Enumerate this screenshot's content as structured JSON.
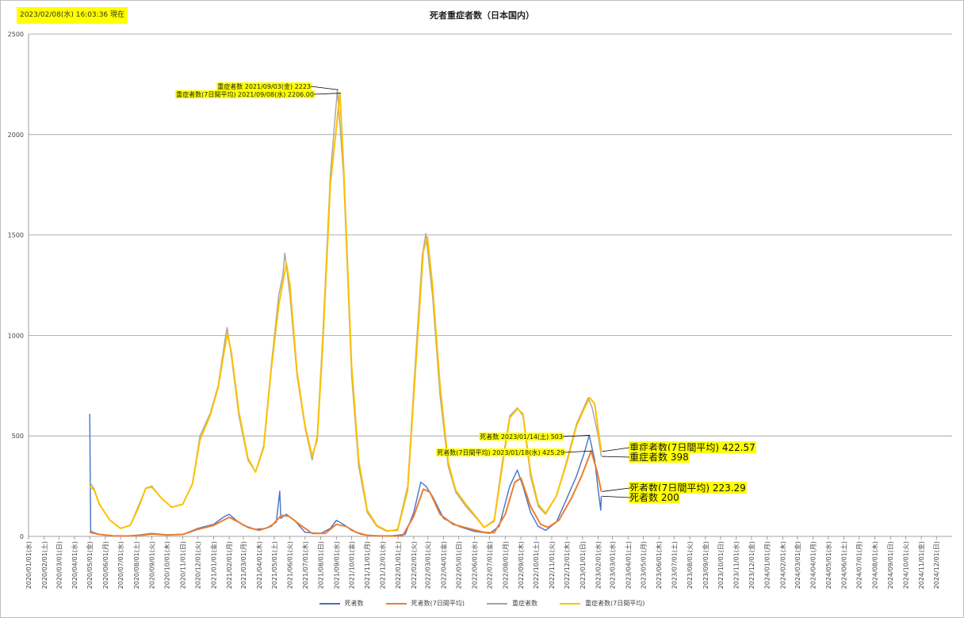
{
  "timestamp": "2023/02/08(水) 16:03:36 現在",
  "chart_data": {
    "type": "line",
    "title": "死者重症者数（日本国内）",
    "ylim": [
      0,
      2500
    ],
    "yticks": [
      0,
      500,
      1000,
      1500,
      2000,
      2500
    ],
    "x_tick_labels": [
      "2020/01/01(水)",
      "2020/02/01(土)",
      "2020/03/01(日)",
      "2020/04/01(水)",
      "2020/05/01(金)",
      "2020/06/01(月)",
      "2020/07/01(水)",
      "2020/08/01(土)",
      "2020/09/01(火)",
      "2020/10/01(木)",
      "2020/11/01(日)",
      "2020/12/01(火)",
      "2021/01/01(金)",
      "2021/02/01(月)",
      "2021/03/01(月)",
      "2021/04/01(木)",
      "2021/05/01(土)",
      "2021/06/01(火)",
      "2021/07/01(木)",
      "2021/08/01(日)",
      "2021/09/01(水)",
      "2021/10/01(金)",
      "2021/11/01(月)",
      "2021/12/01(水)",
      "2022/01/01(土)",
      "2022/02/01(火)",
      "2022/03/01(火)",
      "2022/04/01(金)",
      "2022/05/01(日)",
      "2022/06/01(水)",
      "2022/07/01(金)",
      "2022/08/01(月)",
      "2022/09/01(木)",
      "2022/10/01(土)",
      "2022/11/01(火)",
      "2022/12/01(木)",
      "2023/01/01(日)",
      "2023/02/01(水)",
      "2023/03/01(水)",
      "2023/04/01(土)",
      "2023/05/01(月)",
      "2023/06/01(木)",
      "2023/07/01(土)",
      "2023/08/01(火)",
      "2023/09/01(金)",
      "2023/10/01(日)",
      "2023/11/01(水)",
      "2023/12/01(金)",
      "2024/01/01(月)",
      "2024/02/01(木)",
      "2024/03/01(金)",
      "2024/04/01(月)",
      "2024/05/01(水)",
      "2024/06/01(土)",
      "2024/07/01(月)",
      "2024/08/01(木)",
      "2024/09/01(日)",
      "2024/10/01(火)",
      "2024/11/01(金)",
      "2024/12/01(日)"
    ],
    "x_range": [
      "2020-01-01",
      "2025-01-01"
    ],
    "series": [
      {
        "name": "死者数",
        "color": "#4472c4",
        "points": [
          [
            "2020-05-01",
            610
          ],
          [
            "2020-05-03",
            25
          ],
          [
            "2020-05-20",
            10
          ],
          [
            "2020-06-15",
            3
          ],
          [
            "2020-07-15",
            2
          ],
          [
            "2020-08-10",
            8
          ],
          [
            "2020-09-01",
            15
          ],
          [
            "2020-10-01",
            8
          ],
          [
            "2020-11-01",
            10
          ],
          [
            "2020-12-01",
            40
          ],
          [
            "2021-01-01",
            60
          ],
          [
            "2021-01-20",
            95
          ],
          [
            "2021-02-01",
            110
          ],
          [
            "2021-02-15",
            80
          ],
          [
            "2021-03-01",
            55
          ],
          [
            "2021-03-25",
            35
          ],
          [
            "2021-04-15",
            40
          ],
          [
            "2021-05-05",
            70
          ],
          [
            "2021-05-12",
            225
          ],
          [
            "2021-05-14",
            90
          ],
          [
            "2021-05-25",
            110
          ],
          [
            "2021-06-10",
            80
          ],
          [
            "2021-07-01",
            20
          ],
          [
            "2021-08-01",
            15
          ],
          [
            "2021-08-20",
            40
          ],
          [
            "2021-09-01",
            80
          ],
          [
            "2021-09-15",
            60
          ],
          [
            "2021-10-01",
            30
          ],
          [
            "2021-10-20",
            10
          ],
          [
            "2021-11-15",
            3
          ],
          [
            "2021-12-15",
            2
          ],
          [
            "2022-01-15",
            10
          ],
          [
            "2022-02-01",
            120
          ],
          [
            "2022-02-15",
            270
          ],
          [
            "2022-02-25",
            250
          ],
          [
            "2022-03-10",
            200
          ],
          [
            "2022-04-01",
            90
          ],
          [
            "2022-05-01",
            50
          ],
          [
            "2022-06-01",
            25
          ],
          [
            "2022-07-01",
            15
          ],
          [
            "2022-07-20",
            50
          ],
          [
            "2022-08-10",
            250
          ],
          [
            "2022-08-25",
            330
          ],
          [
            "2022-09-05",
            250
          ],
          [
            "2022-09-20",
            120
          ],
          [
            "2022-10-05",
            50
          ],
          [
            "2022-10-20",
            30
          ],
          [
            "2022-11-10",
            70
          ],
          [
            "2022-12-01",
            190
          ],
          [
            "2022-12-20",
            300
          ],
          [
            "2023-01-05",
            420
          ],
          [
            "2023-01-14",
            503
          ],
          [
            "2023-01-25",
            380
          ],
          [
            "2023-02-01",
            230
          ],
          [
            "2023-02-06",
            130
          ],
          [
            "2023-02-07",
            200
          ]
        ]
      },
      {
        "name": "死者数(7日間平均)",
        "color": "#ed7d31",
        "points": [
          [
            "2020-05-01",
            20
          ],
          [
            "2020-05-20",
            10
          ],
          [
            "2020-06-15",
            3
          ],
          [
            "2020-07-15",
            2
          ],
          [
            "2020-08-15",
            7
          ],
          [
            "2020-09-01",
            12
          ],
          [
            "2020-10-01",
            7
          ],
          [
            "2020-11-01",
            10
          ],
          [
            "2020-12-01",
            35
          ],
          [
            "2021-01-01",
            55
          ],
          [
            "2021-02-01",
            95
          ],
          [
            "2021-02-20",
            70
          ],
          [
            "2021-03-10",
            45
          ],
          [
            "2021-04-01",
            30
          ],
          [
            "2021-04-25",
            50
          ],
          [
            "2021-05-15",
            105
          ],
          [
            "2021-05-30",
            100
          ],
          [
            "2021-06-20",
            60
          ],
          [
            "2021-07-15",
            15
          ],
          [
            "2021-08-10",
            15
          ],
          [
            "2021-09-01",
            60
          ],
          [
            "2021-09-20",
            50
          ],
          [
            "2021-10-10",
            20
          ],
          [
            "2021-11-01",
            5
          ],
          [
            "2021-12-01",
            2
          ],
          [
            "2022-01-10",
            3
          ],
          [
            "2022-02-01",
            100
          ],
          [
            "2022-02-20",
            235
          ],
          [
            "2022-03-05",
            220
          ],
          [
            "2022-03-25",
            110
          ],
          [
            "2022-04-20",
            60
          ],
          [
            "2022-05-20",
            40
          ],
          [
            "2022-06-20",
            20
          ],
          [
            "2022-07-10",
            18
          ],
          [
            "2022-08-01",
            110
          ],
          [
            "2022-08-20",
            270
          ],
          [
            "2022-09-01",
            290
          ],
          [
            "2022-09-20",
            150
          ],
          [
            "2022-10-10",
            60
          ],
          [
            "2022-10-25",
            45
          ],
          [
            "2022-11-15",
            80
          ],
          [
            "2022-12-10",
            190
          ],
          [
            "2022-12-30",
            300
          ],
          [
            "2023-01-18",
            425.29
          ],
          [
            "2023-01-30",
            320
          ],
          [
            "2023-02-07",
            223.29
          ]
        ]
      },
      {
        "name": "重症者数",
        "color": "#a5a5a5",
        "points": [
          [
            "2020-05-01",
            270
          ],
          [
            "2020-05-10",
            235
          ],
          [
            "2020-05-20",
            160
          ],
          [
            "2020-06-10",
            80
          ],
          [
            "2020-07-01",
            40
          ],
          [
            "2020-07-20",
            55
          ],
          [
            "2020-08-05",
            150
          ],
          [
            "2020-08-20",
            240
          ],
          [
            "2020-09-01",
            250
          ],
          [
            "2020-09-20",
            190
          ],
          [
            "2020-10-10",
            145
          ],
          [
            "2020-11-01",
            160
          ],
          [
            "2020-11-20",
            260
          ],
          [
            "2020-12-05",
            500
          ],
          [
            "2020-12-25",
            610
          ],
          [
            "2021-01-10",
            750
          ],
          [
            "2021-01-25",
            1000
          ],
          [
            "2021-01-28",
            1040
          ],
          [
            "2021-02-05",
            900
          ],
          [
            "2021-02-20",
            600
          ],
          [
            "2021-03-10",
            380
          ],
          [
            "2021-03-25",
            320
          ],
          [
            "2021-04-10",
            450
          ],
          [
            "2021-04-25",
            850
          ],
          [
            "2021-05-10",
            1200
          ],
          [
            "2021-05-18",
            1300
          ],
          [
            "2021-05-22",
            1410
          ],
          [
            "2021-06-01",
            1200
          ],
          [
            "2021-06-15",
            800
          ],
          [
            "2021-07-01",
            540
          ],
          [
            "2021-07-15",
            380
          ],
          [
            "2021-07-25",
            500
          ],
          [
            "2021-08-05",
            1000
          ],
          [
            "2021-08-20",
            1800
          ],
          [
            "2021-09-03",
            2223
          ],
          [
            "2021-09-15",
            1800
          ],
          [
            "2021-10-01",
            800
          ],
          [
            "2021-10-15",
            350
          ],
          [
            "2021-11-01",
            120
          ],
          [
            "2021-11-20",
            50
          ],
          [
            "2021-12-10",
            25
          ],
          [
            "2021-12-31",
            35
          ],
          [
            "2022-01-20",
            250
          ],
          [
            "2022-02-05",
            900
          ],
          [
            "2022-02-18",
            1400
          ],
          [
            "2022-02-25",
            1507
          ],
          [
            "2022-03-10",
            1200
          ],
          [
            "2022-03-25",
            700
          ],
          [
            "2022-04-10",
            350
          ],
          [
            "2022-04-25",
            220
          ],
          [
            "2022-05-15",
            150
          ],
          [
            "2022-06-05",
            90
          ],
          [
            "2022-06-20",
            45
          ],
          [
            "2022-07-10",
            80
          ],
          [
            "2022-07-25",
            350
          ],
          [
            "2022-08-10",
            600
          ],
          [
            "2022-08-25",
            640
          ],
          [
            "2022-09-05",
            600
          ],
          [
            "2022-09-20",
            300
          ],
          [
            "2022-10-05",
            150
          ],
          [
            "2022-10-20",
            110
          ],
          [
            "2022-11-10",
            200
          ],
          [
            "2022-12-01",
            380
          ],
          [
            "2022-12-20",
            560
          ],
          [
            "2023-01-05",
            650
          ],
          [
            "2023-01-12",
            690
          ],
          [
            "2023-01-20",
            640
          ],
          [
            "2023-02-01",
            500
          ],
          [
            "2023-02-07",
            398
          ]
        ]
      },
      {
        "name": "重症者数(7日間平均)",
        "color": "#ffc000",
        "points": [
          [
            "2020-05-01",
            250
          ],
          [
            "2020-05-10",
            230
          ],
          [
            "2020-05-20",
            160
          ],
          [
            "2020-06-10",
            80
          ],
          [
            "2020-07-01",
            40
          ],
          [
            "2020-07-20",
            55
          ],
          [
            "2020-08-05",
            140
          ],
          [
            "2020-08-20",
            240
          ],
          [
            "2020-09-01",
            245
          ],
          [
            "2020-09-20",
            190
          ],
          [
            "2020-10-10",
            145
          ],
          [
            "2020-11-01",
            160
          ],
          [
            "2020-11-20",
            260
          ],
          [
            "2020-12-05",
            480
          ],
          [
            "2020-12-25",
            600
          ],
          [
            "2021-01-10",
            740
          ],
          [
            "2021-01-28",
            1010
          ],
          [
            "2021-02-05",
            920
          ],
          [
            "2021-02-20",
            620
          ],
          [
            "2021-03-10",
            390
          ],
          [
            "2021-03-25",
            320
          ],
          [
            "2021-04-10",
            440
          ],
          [
            "2021-04-25",
            830
          ],
          [
            "2021-05-10",
            1150
          ],
          [
            "2021-05-25",
            1360
          ],
          [
            "2021-06-01",
            1250
          ],
          [
            "2021-06-15",
            820
          ],
          [
            "2021-07-01",
            550
          ],
          [
            "2021-07-15",
            400
          ],
          [
            "2021-07-25",
            480
          ],
          [
            "2021-08-05",
            950
          ],
          [
            "2021-08-20",
            1750
          ],
          [
            "2021-09-08",
            2206
          ],
          [
            "2021-09-15",
            1850
          ],
          [
            "2021-10-01",
            850
          ],
          [
            "2021-10-15",
            380
          ],
          [
            "2021-11-01",
            130
          ],
          [
            "2021-11-20",
            55
          ],
          [
            "2021-12-10",
            28
          ],
          [
            "2021-12-31",
            30
          ],
          [
            "2022-01-20",
            230
          ],
          [
            "2022-02-05",
            850
          ],
          [
            "2022-02-20",
            1420
          ],
          [
            "2022-02-28",
            1490
          ],
          [
            "2022-03-10",
            1250
          ],
          [
            "2022-03-25",
            750
          ],
          [
            "2022-04-10",
            370
          ],
          [
            "2022-04-25",
            230
          ],
          [
            "2022-05-15",
            160
          ],
          [
            "2022-06-05",
            95
          ],
          [
            "2022-06-20",
            45
          ],
          [
            "2022-07-10",
            75
          ],
          [
            "2022-07-25",
            330
          ],
          [
            "2022-08-10",
            590
          ],
          [
            "2022-08-25",
            635
          ],
          [
            "2022-09-05",
            610
          ],
          [
            "2022-09-20",
            320
          ],
          [
            "2022-10-05",
            160
          ],
          [
            "2022-10-20",
            115
          ],
          [
            "2022-11-10",
            200
          ],
          [
            "2022-12-01",
            370
          ],
          [
            "2022-12-20",
            550
          ],
          [
            "2023-01-05",
            640
          ],
          [
            "2023-01-15",
            690
          ],
          [
            "2023-01-25",
            660
          ],
          [
            "2023-02-01",
            530
          ],
          [
            "2023-02-07",
            422.57
          ]
        ]
      }
    ],
    "annotations": [
      {
        "text": "重症者数 2021/09/03(金) 2223",
        "size": "small"
      },
      {
        "text": "重症者数(7日間平均) 2021/09/08(水) 2206.00",
        "size": "small"
      },
      {
        "text": "死者数 2023/01/14(土) 503",
        "size": "small"
      },
      {
        "text": "死者数(7日間平均) 2023/01/18(水) 425.29",
        "size": "small"
      },
      {
        "text": "重症者数(7日間平均) 422.57",
        "size": "big"
      },
      {
        "text": "重症者数 398",
        "size": "big"
      },
      {
        "text": "死者数(7日間平均) 223.29",
        "size": "big"
      },
      {
        "text": "死者数 200",
        "size": "big"
      }
    ],
    "legend_position": "bottom"
  }
}
